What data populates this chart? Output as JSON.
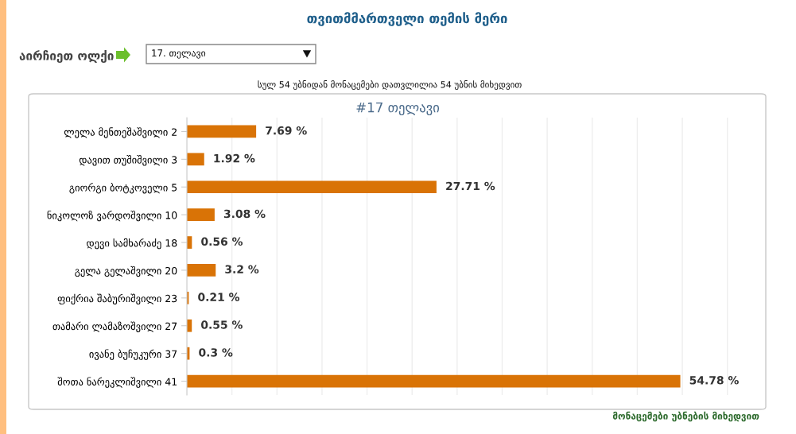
{
  "chart_data": {
    "type": "bar",
    "orientation": "horizontal",
    "title": "თვითმმართველი თემის მერი",
    "subtitle": "#17 თელავი",
    "categories": [
      "ლელა მენთეშაშვილი 2",
      "დავით თუშიშვილი 3",
      "გიორგი ბოტკოველი 5",
      "ნიკოლოზ ვარდოშვილი 10",
      "დევი სამხარაძე 18",
      "გელა გელაშვილი 20",
      "ფიქრია შაბურიშვილი 23",
      "თამარი ლამაზოშვილი 27",
      "ივანე ბუჩუკური 37",
      "შოთა ნარეკლიშვილი 41"
    ],
    "values": [
      7.69,
      1.92,
      27.71,
      3.08,
      0.56,
      3.2,
      0.21,
      0.55,
      0.3,
      54.78
    ],
    "value_labels": [
      "7.69 %",
      "1.92 %",
      "27.71 %",
      "3.08 %",
      "0.56 %",
      "3.2 %",
      "0.21 %",
      "0.55 %",
      "0.3 %",
      "54.78 %"
    ],
    "color": "#d97306",
    "xlim": [
      0,
      64
    ],
    "xticks": [
      {
        "value": 0,
        "label": null
      },
      {
        "value": 5,
        "label": null
      },
      {
        "value": 10,
        "label": null
      },
      {
        "value": 15,
        "label": null
      },
      {
        "value": 20,
        "label": null
      },
      {
        "value": 25,
        "label": null
      },
      {
        "value": 30,
        "label": null
      },
      {
        "value": 35,
        "label": null
      },
      {
        "value": 40,
        "label": null
      },
      {
        "value": 45,
        "label": null
      },
      {
        "value": 50,
        "label": null
      },
      {
        "value": 55,
        "label": null
      },
      {
        "value": 60,
        "label": null
      }
    ],
    "grid": "x",
    "tick_labels": "y",
    "annotations": [
      "აირჩიეთ ოლქი",
      "17. თელავი",
      "სულ 54 უბნიდან მონაცემები დათვლილია 54 უბნის მიხედვით",
      "მონაცემები უბნების მიხედვით"
    ]
  }
}
